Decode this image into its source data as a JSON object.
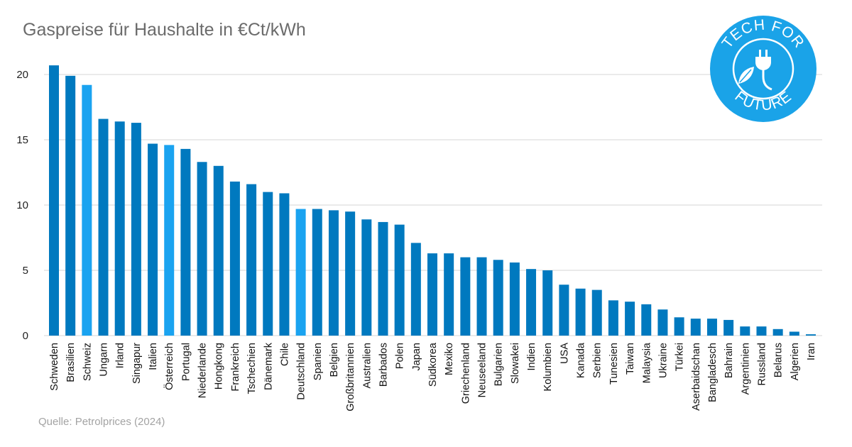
{
  "title": "Gaspreise für Haushalte in €Ct/kWh",
  "source": "Quelle: Petrolprices (2024)",
  "logo": {
    "top_text": "TECH FOR",
    "bottom_text": "FUTURE",
    "color": "#1aa3e8",
    "icons": [
      "plug-icon",
      "leaf-icon"
    ]
  },
  "colors": {
    "bar": "#0079bf",
    "highlight": "#1aa3f0",
    "grid": "#d4d4d4"
  },
  "chart_data": {
    "type": "bar",
    "title": "Gaspreise für Haushalte in €Ct/kWh",
    "xlabel": "",
    "ylabel": "",
    "ylim": [
      0,
      20
    ],
    "yticks": [
      0,
      5,
      10,
      15,
      20
    ],
    "grid": true,
    "legend": "none",
    "categories": [
      "Schweden",
      "Brasilien",
      "Schweiz",
      "Ungarn",
      "Irland",
      "Singapur",
      "Italien",
      "Österreich",
      "Portugal",
      "Niederlande",
      "Hongkong",
      "Frankreich",
      "Tschechien",
      "Dänemark",
      "Chile",
      "Deutschland",
      "Spanien",
      "Belgien",
      "Großbritannien",
      "Australien",
      "Barbados",
      "Polen",
      "Japan",
      "Südkorea",
      "Mexiko",
      "Griechenland",
      "Neuseeland",
      "Bulgarien",
      "Slowakei",
      "Indien",
      "Kolumbien",
      "USA",
      "Kanada",
      "Serbien",
      "Tunesien",
      "Taiwan",
      "Malaysia",
      "Ukraine",
      "Türkei",
      "Aserbaidschan",
      "Bangladesch",
      "Bahrain",
      "Argentinien",
      "Russland",
      "Belarus",
      "Algerien",
      "Iran"
    ],
    "values": [
      20.7,
      19.9,
      19.2,
      16.6,
      16.4,
      16.3,
      14.7,
      14.6,
      14.3,
      13.3,
      13.0,
      11.8,
      11.6,
      11.0,
      10.9,
      9.7,
      9.7,
      9.6,
      9.5,
      8.9,
      8.7,
      8.5,
      7.1,
      6.3,
      6.3,
      6.0,
      6.0,
      5.8,
      5.6,
      5.1,
      5.0,
      3.9,
      3.6,
      3.5,
      2.7,
      2.6,
      2.4,
      2.0,
      1.4,
      1.3,
      1.3,
      1.2,
      0.7,
      0.7,
      0.5,
      0.3,
      0.1
    ],
    "highlight": [
      "Schweiz",
      "Österreich",
      "Deutschland"
    ]
  }
}
